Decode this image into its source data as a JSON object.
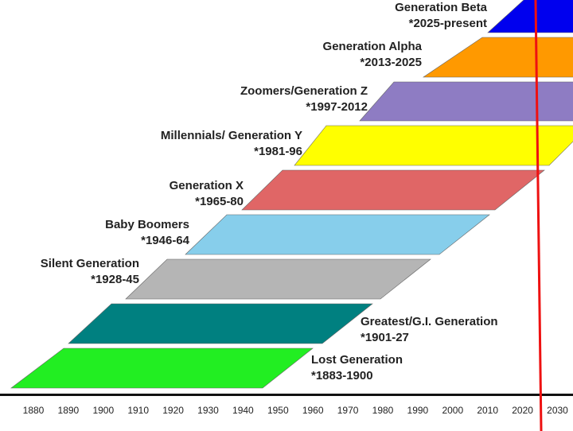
{
  "generations": [
    {
      "name": "Lost Generation",
      "years": "*1883-1900",
      "color": "#22ee22"
    },
    {
      "name": "Greatest/G.I. Generation",
      "years": "*1901-27",
      "color": "#008080"
    },
    {
      "name": "Silent Generation",
      "years": "*1928-45",
      "color": "#b5b5b5"
    },
    {
      "name": "Baby Boomers",
      "years": "*1946-64",
      "color": "#87ceeb"
    },
    {
      "name": "Generation X",
      "years": "*1965-80",
      "color": "#e06666"
    },
    {
      "name": "Millennials/ Generation Y",
      "years": "*1981-96",
      "color": "#ffff00"
    },
    {
      "name": "Zoomers/Generation Z",
      "years": "*1997-2012",
      "color": "#8e7cc3"
    },
    {
      "name": "Generation Alpha",
      "years": "*2013-2025",
      "color": "#ff9900"
    },
    {
      "name": "Generation Beta",
      "years": "*2025-present",
      "color": "#0000ee"
    }
  ],
  "axis": {
    "ticks": [
      "1880",
      "1890",
      "1900",
      "1910",
      "1920",
      "1930",
      "1940",
      "1950",
      "1960",
      "1970",
      "1980",
      "1990",
      "2000",
      "2010",
      "2020",
      "2030"
    ]
  },
  "current_year_marker_color": "#ee1111"
}
